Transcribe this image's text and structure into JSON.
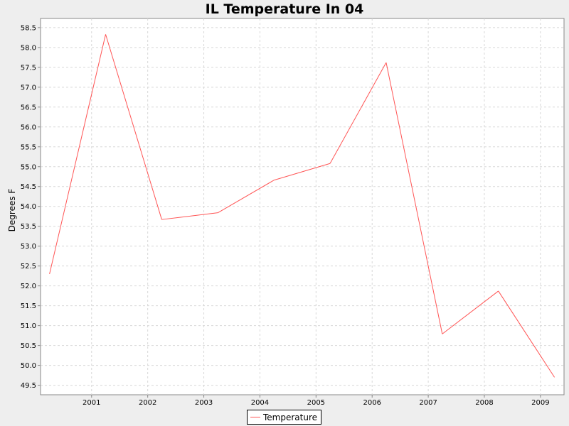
{
  "chart_data": {
    "type": "line",
    "title": "IL Temperature In 04",
    "xlabel": "",
    "ylabel": "Degrees F",
    "x_ticks": [
      "2001",
      "2002",
      "2003",
      "2004",
      "2005",
      "2006",
      "2007",
      "2008",
      "2009"
    ],
    "y_ticks": [
      "49.5",
      "50.0",
      "50.5",
      "51.0",
      "51.5",
      "52.0",
      "52.5",
      "53.0",
      "53.5",
      "54.0",
      "54.5",
      "55.0",
      "55.5",
      "56.0",
      "56.5",
      "57.0",
      "57.5",
      "58.0",
      "58.5"
    ],
    "xlim": [
      2000.09,
      2009.42
    ],
    "ylim": [
      49.26,
      58.73
    ],
    "grid": true,
    "legend_position": "bottom-center",
    "series": [
      {
        "name": "Temperature",
        "color": "#ff5555",
        "x": [
          2000.25,
          2001.25,
          2002.25,
          2003.25,
          2004.25,
          2005.25,
          2006.25,
          2007.25,
          2008.25,
          2009.25
        ],
        "y": [
          52.3,
          58.33,
          53.67,
          53.84,
          54.66,
          55.08,
          57.62,
          50.79,
          51.87,
          49.7
        ]
      }
    ]
  }
}
